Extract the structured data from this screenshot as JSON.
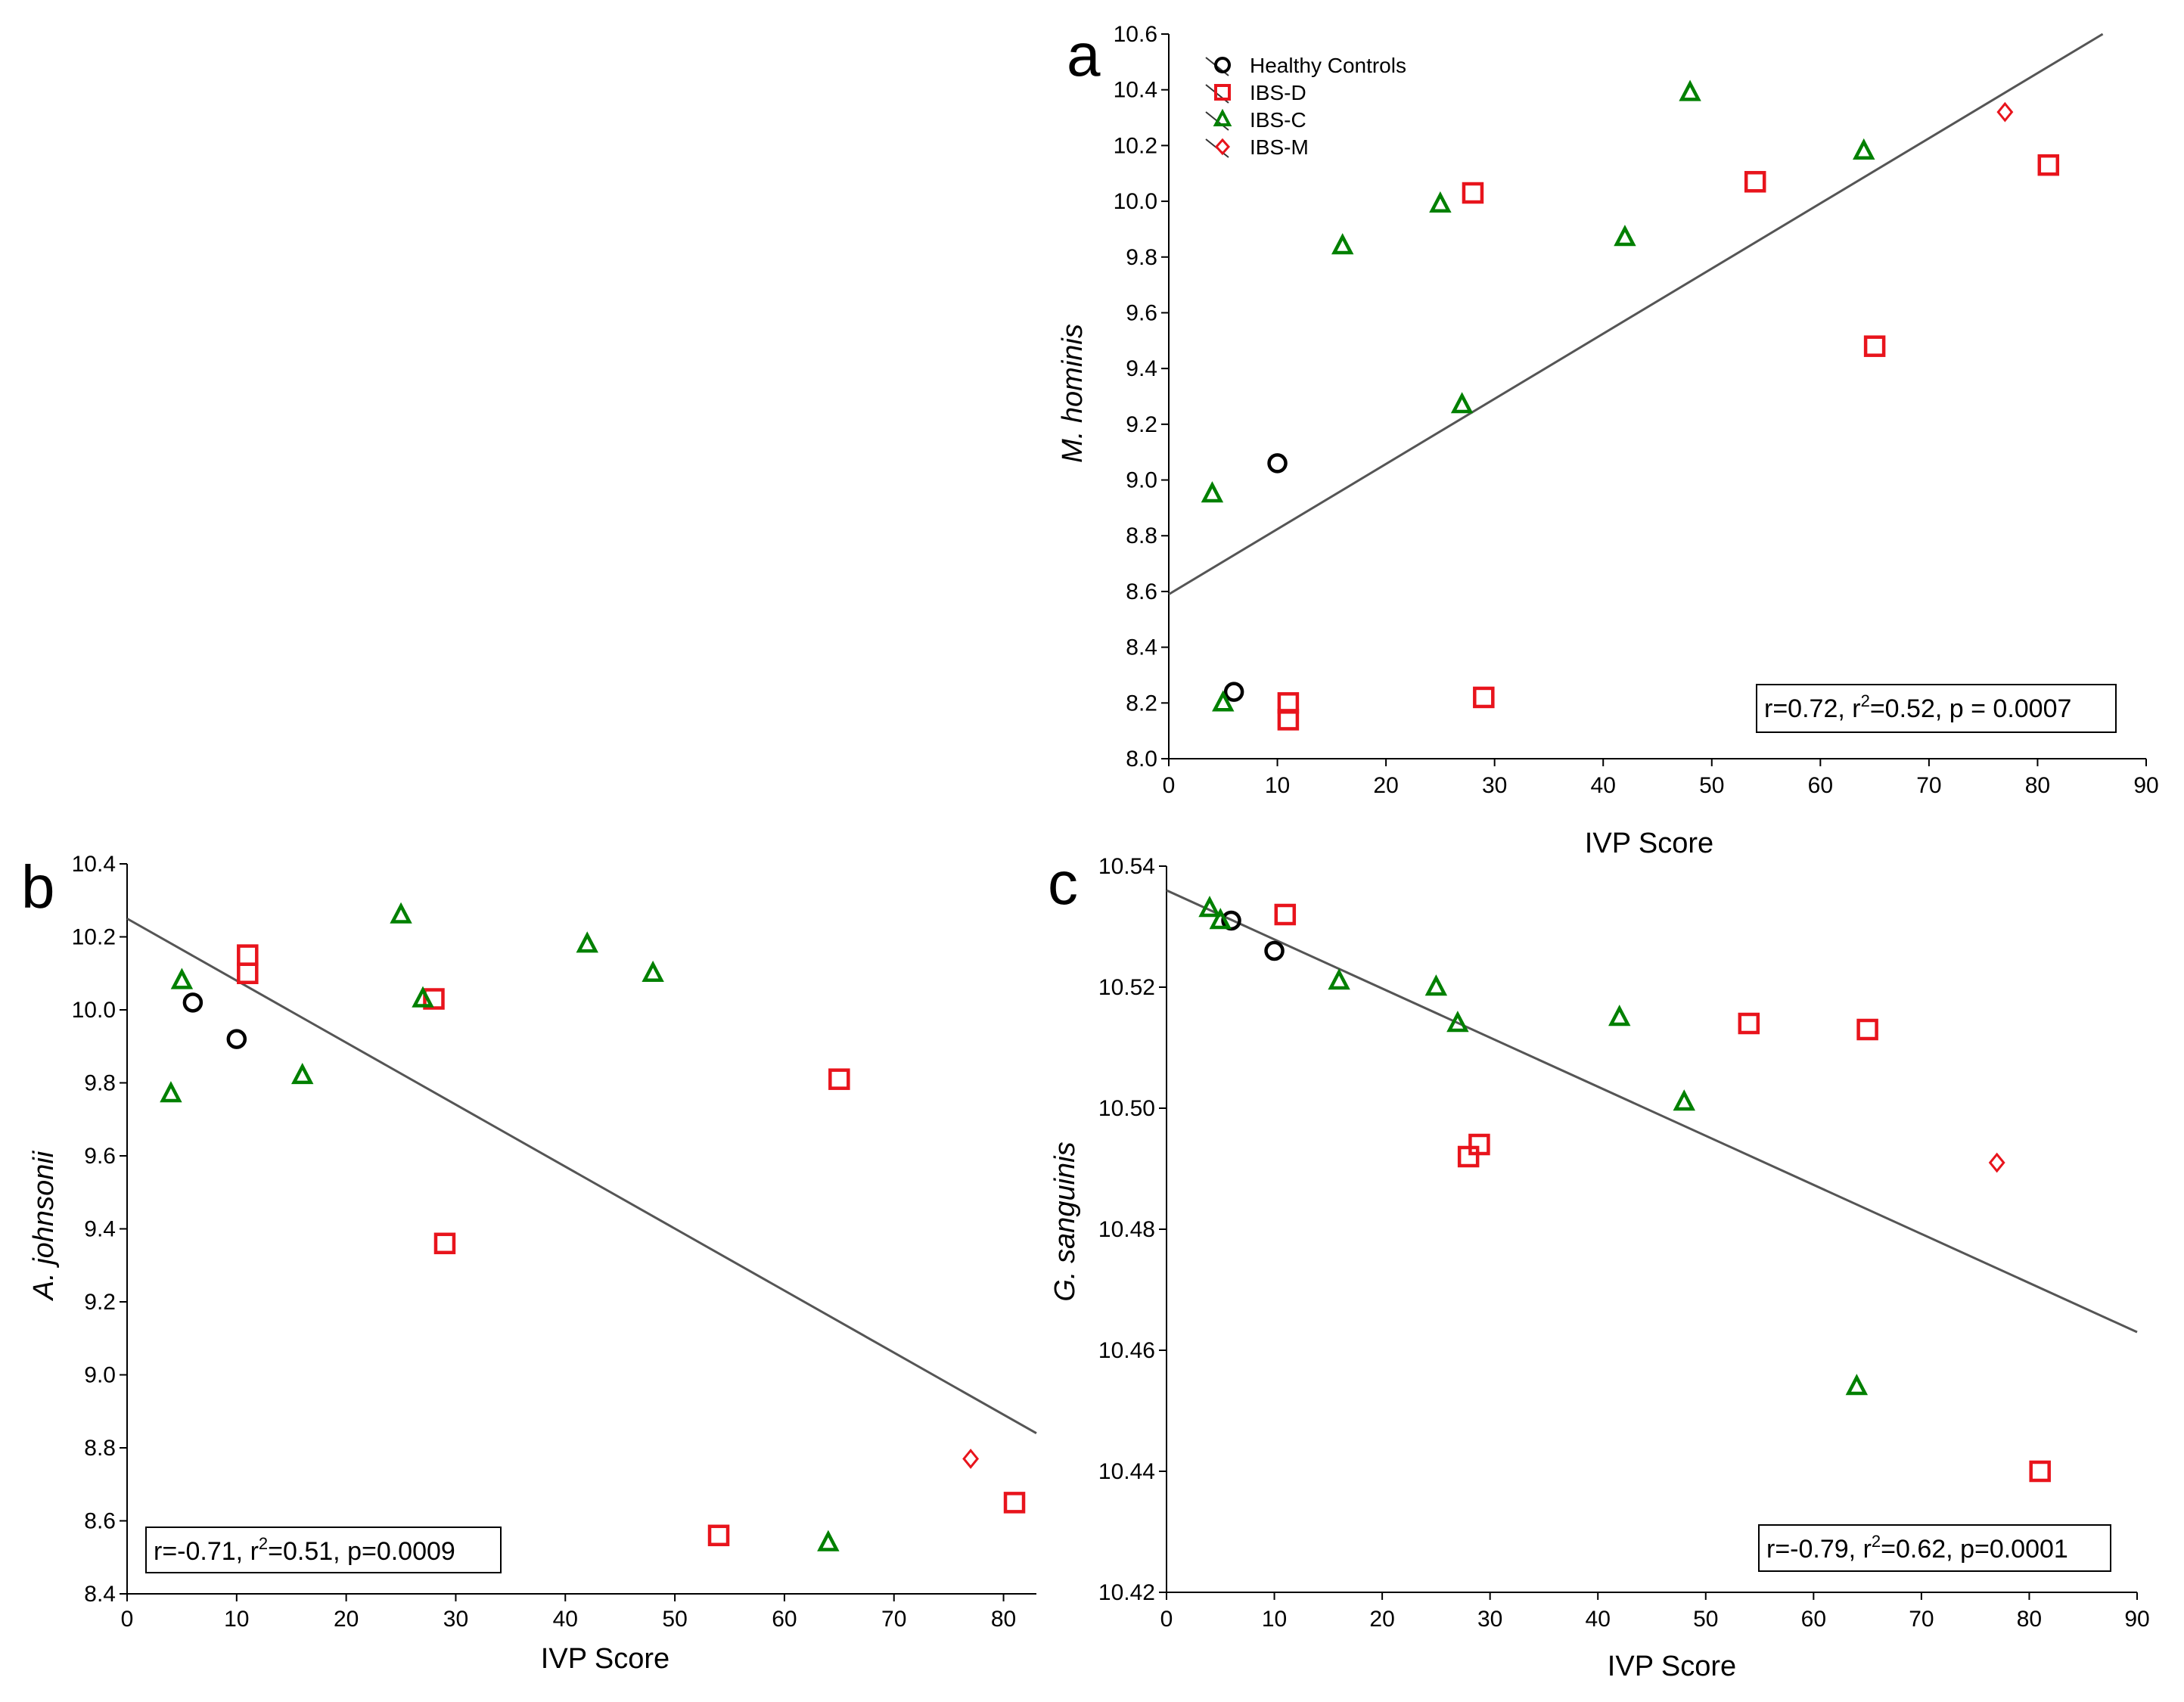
{
  "chart_data": [
    {
      "type": "scatter",
      "panel": "a",
      "xlabel": "IVP Score",
      "ylabel": "M. hominis",
      "xlim": [
        0,
        90
      ],
      "ylim": [
        8.0,
        10.6
      ],
      "xticks": [
        0,
        10,
        20,
        30,
        40,
        50,
        60,
        70,
        80,
        90
      ],
      "xtick_labels": [
        "0",
        "10",
        "20",
        "30",
        "40",
        "50",
        "60",
        "70",
        "80",
        "90"
      ],
      "yticks": [
        8.0,
        8.2,
        8.4,
        8.6,
        8.8,
        9.0,
        9.2,
        9.4,
        9.6,
        9.8,
        10.0,
        10.2,
        10.4,
        10.6
      ],
      "ytick_labels": [
        "8.0",
        "8.2",
        "8.4",
        "8.6",
        "8.8",
        "9.0",
        "9.2",
        "9.4",
        "9.6",
        "9.8",
        "10.0",
        "10.2",
        "10.4",
        "10.6"
      ],
      "fit_line": {
        "x": [
          0,
          86
        ],
        "y": [
          8.59,
          10.6
        ]
      },
      "legend": [
        "Healthy Controls",
        "IBS-D",
        "IBS-C",
        "IBS-M"
      ],
      "stats": {
        "prefix": "r=0.72, r",
        "sup": "2",
        "suffix": "=0.52, p = 0.0007"
      },
      "series": [
        {
          "name": "Healthy Controls",
          "marker": "circle",
          "color": "#000000",
          "points": [
            [
              10,
              9.06
            ],
            [
              6,
              8.24
            ]
          ]
        },
        {
          "name": "IBS-D",
          "marker": "square",
          "color": "#e8141c",
          "points": [
            [
              28,
              10.03
            ],
            [
              54,
              10.07
            ],
            [
              81,
              10.13
            ],
            [
              65,
              9.48
            ],
            [
              11,
              8.2
            ],
            [
              11,
              8.14
            ],
            [
              29,
              8.22
            ]
          ]
        },
        {
          "name": "IBS-C",
          "marker": "triangle",
          "color": "#008000",
          "points": [
            [
              48,
              10.39
            ],
            [
              64,
              10.18
            ],
            [
              25,
              9.99
            ],
            [
              16,
              9.84
            ],
            [
              42,
              9.87
            ],
            [
              27,
              9.27
            ],
            [
              4,
              8.95
            ],
            [
              5,
              8.2
            ]
          ]
        },
        {
          "name": "IBS-M",
          "marker": "diamond",
          "color": "#e8141c",
          "points": [
            [
              77,
              10.32
            ]
          ]
        }
      ]
    },
    {
      "type": "scatter",
      "panel": "b",
      "xlabel": "IVP Score",
      "ylabel": "A. johnsonii",
      "xlim": [
        0,
        83
      ],
      "ylim": [
        8.4,
        10.4
      ],
      "xticks": [
        0,
        10,
        20,
        30,
        40,
        50,
        60,
        70,
        80
      ],
      "xtick_labels": [
        "0",
        "10",
        "20",
        "30",
        "40",
        "50",
        "60",
        "70",
        "80"
      ],
      "yticks": [
        8.4,
        8.6,
        8.8,
        9.0,
        9.2,
        9.4,
        9.6,
        9.8,
        10.0,
        10.2,
        10.4
      ],
      "ytick_labels": [
        "8.4",
        "8.6",
        "8.8",
        "9.0",
        "9.2",
        "9.4",
        "9.6",
        "9.8",
        "10.0",
        "10.2",
        "10.4"
      ],
      "fit_line": {
        "x": [
          0,
          83
        ],
        "y": [
          10.25,
          8.84
        ]
      },
      "stats": {
        "prefix": "r=-0.71, r",
        "sup": "2",
        "suffix": "=0.51, p=0.0009"
      },
      "series": [
        {
          "name": "Healthy Controls",
          "marker": "circle",
          "color": "#000000",
          "points": [
            [
              6,
              10.02
            ],
            [
              10,
              9.92
            ]
          ]
        },
        {
          "name": "IBS-D",
          "marker": "square",
          "color": "#e8141c",
          "points": [
            [
              11,
              10.15
            ],
            [
              11,
              10.1
            ],
            [
              28,
              10.03
            ],
            [
              65,
              9.81
            ],
            [
              29,
              9.36
            ],
            [
              54,
              8.56
            ],
            [
              81,
              8.65
            ]
          ]
        },
        {
          "name": "IBS-C",
          "marker": "triangle",
          "color": "#008000",
          "points": [
            [
              5,
              10.08
            ],
            [
              4,
              9.77
            ],
            [
              16,
              9.82
            ],
            [
              25,
              10.26
            ],
            [
              27,
              10.03
            ],
            [
              42,
              10.18
            ],
            [
              48,
              10.1
            ],
            [
              64,
              8.54
            ]
          ]
        },
        {
          "name": "IBS-M",
          "marker": "diamond",
          "color": "#e8141c",
          "points": [
            [
              77,
              8.77
            ]
          ]
        }
      ]
    },
    {
      "type": "scatter",
      "panel": "c",
      "xlabel": "IVP Score",
      "ylabel": "G. sanguinis",
      "xlim": [
        0,
        90
      ],
      "ylim": [
        10.42,
        10.54
      ],
      "xticks": [
        0,
        10,
        20,
        30,
        40,
        50,
        60,
        70,
        80,
        90
      ],
      "xtick_labels": [
        "0",
        "10",
        "20",
        "30",
        "40",
        "50",
        "60",
        "70",
        "80",
        "90"
      ],
      "yticks": [
        10.42,
        10.44,
        10.46,
        10.48,
        10.5,
        10.52,
        10.54
      ],
      "ytick_labels": [
        "10.42",
        "10.44",
        "10.46",
        "10.48",
        "10.50",
        "10.52",
        "10.54"
      ],
      "fit_line": {
        "x": [
          0,
          90
        ],
        "y": [
          10.536,
          10.463
        ]
      },
      "stats": {
        "prefix": "r=-0.79, r",
        "sup": "2",
        "suffix": "=0.62, p=0.0001"
      },
      "series": [
        {
          "name": "Healthy Controls",
          "marker": "circle",
          "color": "#000000",
          "points": [
            [
              6,
              10.531
            ],
            [
              10,
              10.526
            ]
          ]
        },
        {
          "name": "IBS-D",
          "marker": "square",
          "color": "#e8141c",
          "points": [
            [
              11,
              10.532
            ],
            [
              54,
              10.514
            ],
            [
              65,
              10.513
            ],
            [
              28,
              10.492
            ],
            [
              29,
              10.494
            ],
            [
              81,
              10.44
            ]
          ]
        },
        {
          "name": "IBS-C",
          "marker": "triangle",
          "color": "#008000",
          "points": [
            [
              4,
              10.533
            ],
            [
              5,
              10.531
            ],
            [
              16,
              10.521
            ],
            [
              25,
              10.52
            ],
            [
              27,
              10.514
            ],
            [
              42,
              10.515
            ],
            [
              48,
              10.501
            ],
            [
              64,
              10.454
            ]
          ]
        },
        {
          "name": "IBS-M",
          "marker": "diamond",
          "color": "#e8141c",
          "points": [
            [
              77,
              10.491
            ]
          ]
        }
      ]
    }
  ]
}
